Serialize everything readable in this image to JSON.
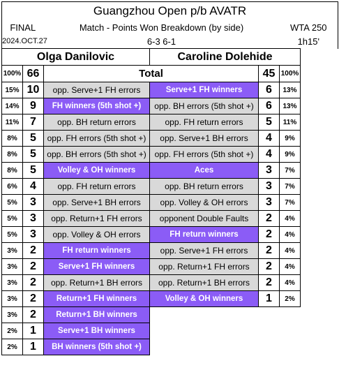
{
  "header": {
    "title": "Guangzhou Open p/b AVATR",
    "status": "FINAL",
    "subtitle": "Match - Points Won Breakdown (by side)",
    "tour": "WTA 250",
    "date": "2024.OCT.27",
    "score": "6-3 6-1",
    "duration": "1h15'"
  },
  "players": {
    "left": "Olga Danilovic",
    "right": "Caroline Dolehide"
  },
  "total": {
    "left_pct": "100%",
    "left_num": "66",
    "label": "Total",
    "right_num": "45",
    "right_pct": "100%"
  },
  "colors": {
    "highlight": "#8b5cf6",
    "neutral": "#d9d9d9"
  },
  "rows": [
    {
      "lp": "15%",
      "ln": "10",
      "ll": "opp. Serve+1 FH errors",
      "lh": false,
      "rl": "Serve+1 FH winners",
      "rh": true,
      "rn": "6",
      "rp": "13%"
    },
    {
      "lp": "14%",
      "ln": "9",
      "ll": "FH winners (5th shot +)",
      "lh": true,
      "rl": "opp. BH errors (5th shot +)",
      "rh": false,
      "rn": "6",
      "rp": "13%"
    },
    {
      "lp": "11%",
      "ln": "7",
      "ll": "opp. BH return errors",
      "lh": false,
      "rl": "opp. FH return errors",
      "rh": false,
      "rn": "5",
      "rp": "11%"
    },
    {
      "lp": "8%",
      "ln": "5",
      "ll": "opp. FH errors (5th shot +)",
      "lh": false,
      "rl": "opp. Serve+1 BH errors",
      "rh": false,
      "rn": "4",
      "rp": "9%"
    },
    {
      "lp": "8%",
      "ln": "5",
      "ll": "opp. BH errors (5th shot +)",
      "lh": false,
      "rl": "opp. FH errors (5th shot +)",
      "rh": false,
      "rn": "4",
      "rp": "9%"
    },
    {
      "lp": "8%",
      "ln": "5",
      "ll": "Volley & OH winners",
      "lh": true,
      "rl": "Aces",
      "rh": true,
      "rn": "3",
      "rp": "7%"
    },
    {
      "lp": "6%",
      "ln": "4",
      "ll": "opp. FH return errors",
      "lh": false,
      "rl": "opp. BH return errors",
      "rh": false,
      "rn": "3",
      "rp": "7%"
    },
    {
      "lp": "5%",
      "ln": "3",
      "ll": "opp. Serve+1 BH errors",
      "lh": false,
      "rl": "opp. Volley & OH errors",
      "rh": false,
      "rn": "3",
      "rp": "7%"
    },
    {
      "lp": "5%",
      "ln": "3",
      "ll": "opp. Return+1 FH errors",
      "lh": false,
      "rl": "opponent Double Faults",
      "rh": false,
      "rn": "2",
      "rp": "4%"
    },
    {
      "lp": "5%",
      "ln": "3",
      "ll": "opp. Volley & OH errors",
      "lh": false,
      "rl": "FH return winners",
      "rh": true,
      "rn": "2",
      "rp": "4%"
    },
    {
      "lp": "3%",
      "ln": "2",
      "ll": "FH return winners",
      "lh": true,
      "rl": "opp. Serve+1 FH errors",
      "rh": false,
      "rn": "2",
      "rp": "4%"
    },
    {
      "lp": "3%",
      "ln": "2",
      "ll": "Serve+1 FH winners",
      "lh": true,
      "rl": "opp. Return+1 FH errors",
      "rh": false,
      "rn": "2",
      "rp": "4%"
    },
    {
      "lp": "3%",
      "ln": "2",
      "ll": "opp. Return+1 BH errors",
      "lh": false,
      "rl": "opp. Return+1 BH errors",
      "rh": false,
      "rn": "2",
      "rp": "4%"
    },
    {
      "lp": "3%",
      "ln": "2",
      "ll": "Return+1 FH winners",
      "lh": true,
      "rl": "Volley & OH winners",
      "rh": true,
      "rn": "1",
      "rp": "2%"
    },
    {
      "lp": "3%",
      "ln": "2",
      "ll": "Return+1 BH winners",
      "lh": true,
      "rl": "",
      "rh": false,
      "rn": "",
      "rp": ""
    },
    {
      "lp": "2%",
      "ln": "1",
      "ll": "Serve+1 BH winners",
      "lh": true,
      "rl": "",
      "rh": false,
      "rn": "",
      "rp": ""
    },
    {
      "lp": "2%",
      "ln": "1",
      "ll": "BH winners (5th shot +)",
      "lh": true,
      "rl": "",
      "rh": false,
      "rn": "",
      "rp": ""
    }
  ]
}
